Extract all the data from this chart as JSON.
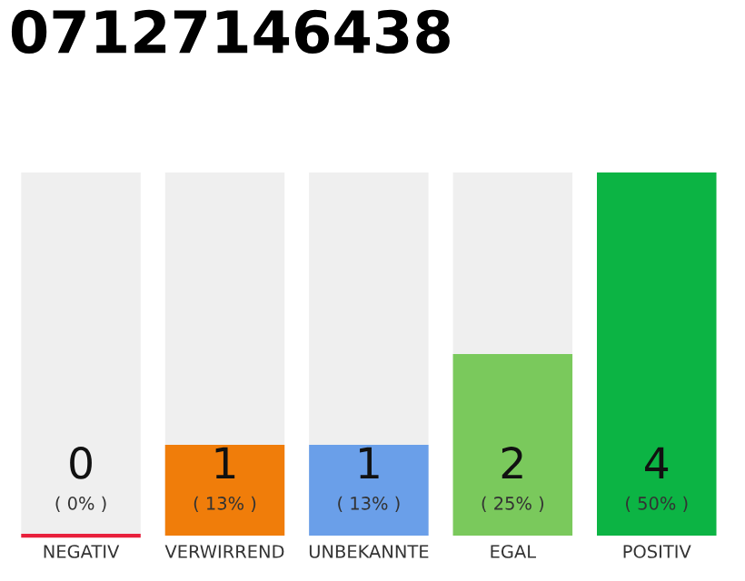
{
  "chart_data": {
    "type": "bar",
    "title": "07127146438",
    "categories": [
      "NEGATIV",
      "VERWIRREND",
      "UNBEKANNTE",
      "EGAL",
      "POSITIV"
    ],
    "values": [
      0,
      1,
      1,
      2,
      4
    ],
    "colors": [
      "#e8203c",
      "#f07d0a",
      "#6a9fe9",
      "#7ac95c",
      "#0cb444"
    ],
    "data_labels": true,
    "annotations": [
      "( 0% )",
      "( 13% )",
      "( 13% )",
      "( 25% )",
      "( 50% )"
    ],
    "ylim": [
      0,
      4
    ],
    "tick_labels": "x",
    "grid": false,
    "legend": false
  }
}
